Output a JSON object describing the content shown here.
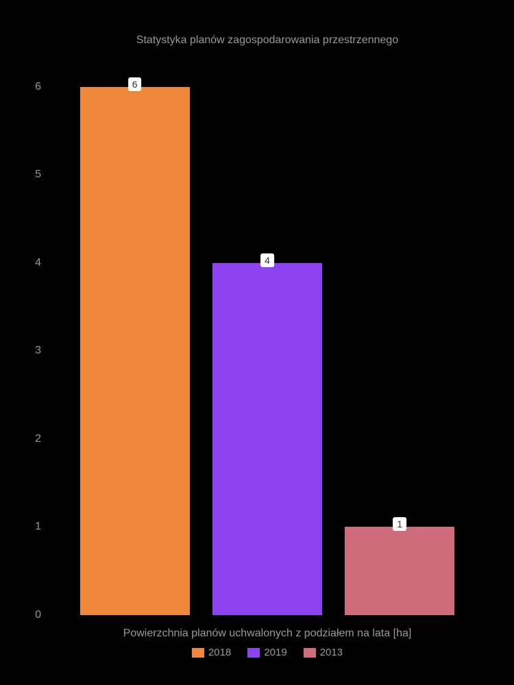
{
  "chart": {
    "type": "bar",
    "title": "Statystyka planów zagospodarowania przestrzennego",
    "title_fontsize": 16,
    "title_color": "#999999",
    "background_color": "#000000",
    "xlabel": "Powierzchnia planów uchwalonych z podziałem na lata [ha]",
    "label_fontsize": 16,
    "label_color": "#999999",
    "ylim": [
      0,
      6.3
    ],
    "yticks": [
      0,
      1,
      2,
      3,
      4,
      5,
      6
    ],
    "tick_color": "#999999",
    "tick_fontsize": 16,
    "bars": [
      {
        "category": "2018",
        "value": 6,
        "color": "#f0883b"
      },
      {
        "category": "2019",
        "value": 4,
        "color": "#8d43f0"
      },
      {
        "category": "2013",
        "value": 1,
        "color": "#cf6d7d"
      }
    ],
    "bar_label_bg": "#ffffff",
    "bar_label_color": "#333333",
    "legend": [
      {
        "label": "2018",
        "color": "#f0883b"
      },
      {
        "label": "2019",
        "color": "#8d43f0"
      },
      {
        "label": "2013",
        "color": "#cf6d7d"
      }
    ]
  }
}
